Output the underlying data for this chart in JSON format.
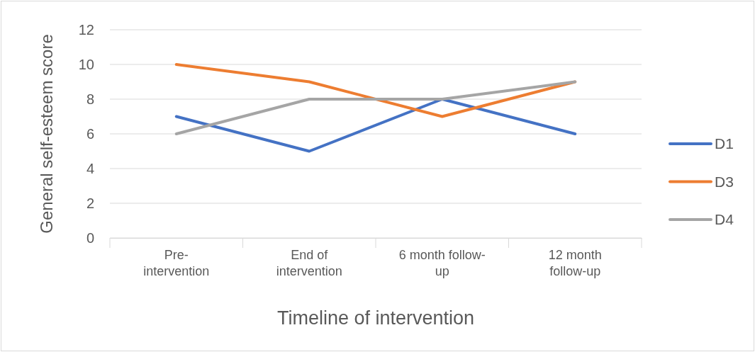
{
  "chart_data": {
    "type": "line",
    "xlabel": "Timeline of intervention",
    "ylabel": "General self-esteem score",
    "categories": [
      "Pre-intervention",
      "End of intervention",
      "6 month follow-up",
      "12 month follow-up"
    ],
    "series": [
      {
        "name": "D1",
        "color": "#4472c4",
        "values": [
          7,
          5,
          8,
          6
        ]
      },
      {
        "name": "D3",
        "color": "#ed7d31",
        "values": [
          10,
          9,
          7,
          9
        ]
      },
      {
        "name": "D4",
        "color": "#a5a5a5",
        "values": [
          6,
          8,
          8,
          9
        ]
      }
    ],
    "ylim": [
      0,
      12
    ],
    "yticks": [
      0,
      2,
      4,
      6,
      8,
      10,
      12
    ],
    "grid": "y",
    "legend": "right",
    "marker": "none",
    "line_style": "solid"
  }
}
